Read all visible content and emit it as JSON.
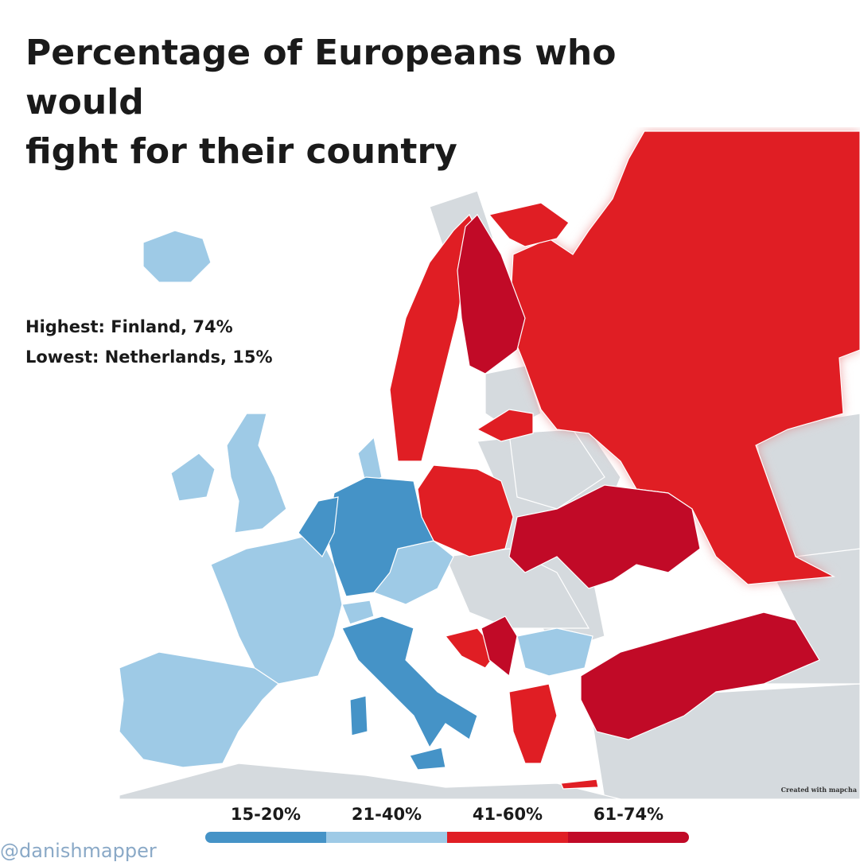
{
  "title_line1": "Percentage of Europeans who would",
  "title_line2": "fight for their country",
  "highest": "Highest: Finland, 74%",
  "lowest": "Lowest: Netherlands, 15%",
  "legend": [
    {
      "label": "15-20%",
      "color": "#4593c7"
    },
    {
      "label": "21-40%",
      "color": "#9ecae6"
    },
    {
      "label": "41-60%",
      "color": "#e01e24"
    },
    {
      "label": "61-74%",
      "color": "#c10a27"
    }
  ],
  "colors": {
    "no_data": "#d5dade",
    "sea": "#ffffff",
    "band_15_20": "#4593c7",
    "band_21_40": "#9ecae6",
    "band_41_60": "#e01e24",
    "band_61_74": "#c10a27"
  },
  "credit": "Created with mapcha",
  "handle": "@danishmapper"
}
